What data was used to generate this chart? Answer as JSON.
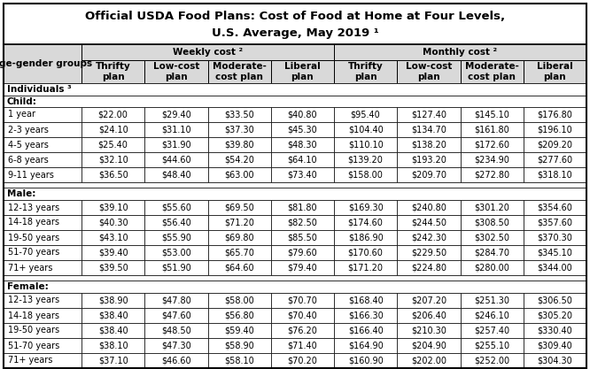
{
  "title_line1": "Official USDA Food Plans: Cost of Food at Home at Four Levels,",
  "title_line2": "U.S. Average, May 2019 ¹",
  "col_header_group1": "Weekly cost ²",
  "col_header_group2": "Monthly cost ²",
  "col_subheaders": [
    "Thrifty\nplan",
    "Low-cost\nplan",
    "Moderate-\ncost plan",
    "Liberal\nplan",
    "Thrifty\nplan",
    "Low-cost\nplan",
    "Moderate-\ncost plan",
    "Liberal\nplan"
  ],
  "row_groups": [
    {
      "group_label": "Individuals ³",
      "subgroup_label": "Child:",
      "rows": [
        [
          "1 year",
          "$22.00",
          "$29.40",
          "$33.50",
          "$40.80",
          "$95.40",
          "$127.40",
          "$145.10",
          "$176.80"
        ],
        [
          "2-3 years",
          "$24.10",
          "$31.10",
          "$37.30",
          "$45.30",
          "$104.40",
          "$134.70",
          "$161.80",
          "$196.10"
        ],
        [
          "4-5 years",
          "$25.40",
          "$31.90",
          "$39.80",
          "$48.30",
          "$110.10",
          "$138.20",
          "$172.60",
          "$209.20"
        ],
        [
          "6-8 years",
          "$32.10",
          "$44.60",
          "$54.20",
          "$64.10",
          "$139.20",
          "$193.20",
          "$234.90",
          "$277.60"
        ],
        [
          "9-11 years",
          "$36.50",
          "$48.40",
          "$63.00",
          "$73.40",
          "$158.00",
          "$209.70",
          "$272.80",
          "$318.10"
        ]
      ]
    },
    {
      "group_label": "Male:",
      "subgroup_label": null,
      "rows": [
        [
          "12-13 years",
          "$39.10",
          "$55.60",
          "$69.50",
          "$81.80",
          "$169.30",
          "$240.80",
          "$301.20",
          "$354.60"
        ],
        [
          "14-18 years",
          "$40.30",
          "$56.40",
          "$71.20",
          "$82.50",
          "$174.60",
          "$244.50",
          "$308.50",
          "$357.60"
        ],
        [
          "19-50 years",
          "$43.10",
          "$55.90",
          "$69.80",
          "$85.50",
          "$186.90",
          "$242.30",
          "$302.50",
          "$370.30"
        ],
        [
          "51-70 years",
          "$39.40",
          "$53.00",
          "$65.70",
          "$79.60",
          "$170.60",
          "$229.50",
          "$284.70",
          "$345.10"
        ],
        [
          "71+ years",
          "$39.50",
          "$51.90",
          "$64.60",
          "$79.40",
          "$171.20",
          "$224.80",
          "$280.00",
          "$344.00"
        ]
      ]
    },
    {
      "group_label": "Female:",
      "subgroup_label": null,
      "rows": [
        [
          "12-13 years",
          "$38.90",
          "$47.80",
          "$58.00",
          "$70.70",
          "$168.40",
          "$207.20",
          "$251.30",
          "$306.50"
        ],
        [
          "14-18 years",
          "$38.40",
          "$47.60",
          "$56.80",
          "$70.40",
          "$166.30",
          "$206.40",
          "$246.10",
          "$305.20"
        ],
        [
          "19-50 years",
          "$38.40",
          "$48.50",
          "$59.40",
          "$76.20",
          "$166.40",
          "$210.30",
          "$257.40",
          "$330.40"
        ],
        [
          "51-70 years",
          "$38.10",
          "$47.30",
          "$58.90",
          "$71.40",
          "$164.90",
          "$204.90",
          "$255.10",
          "$309.40"
        ],
        [
          "71+ years",
          "$37.10",
          "$46.60",
          "$58.10",
          "$70.20",
          "$160.90",
          "$202.00",
          "$252.00",
          "$304.30"
        ]
      ]
    }
  ],
  "bg_color": "#ffffff",
  "header_bg": "#d9d9d9",
  "border_color": "#000000",
  "title_fontsize": 9.5,
  "header_fontsize": 7.5,
  "cell_fontsize": 7.0
}
